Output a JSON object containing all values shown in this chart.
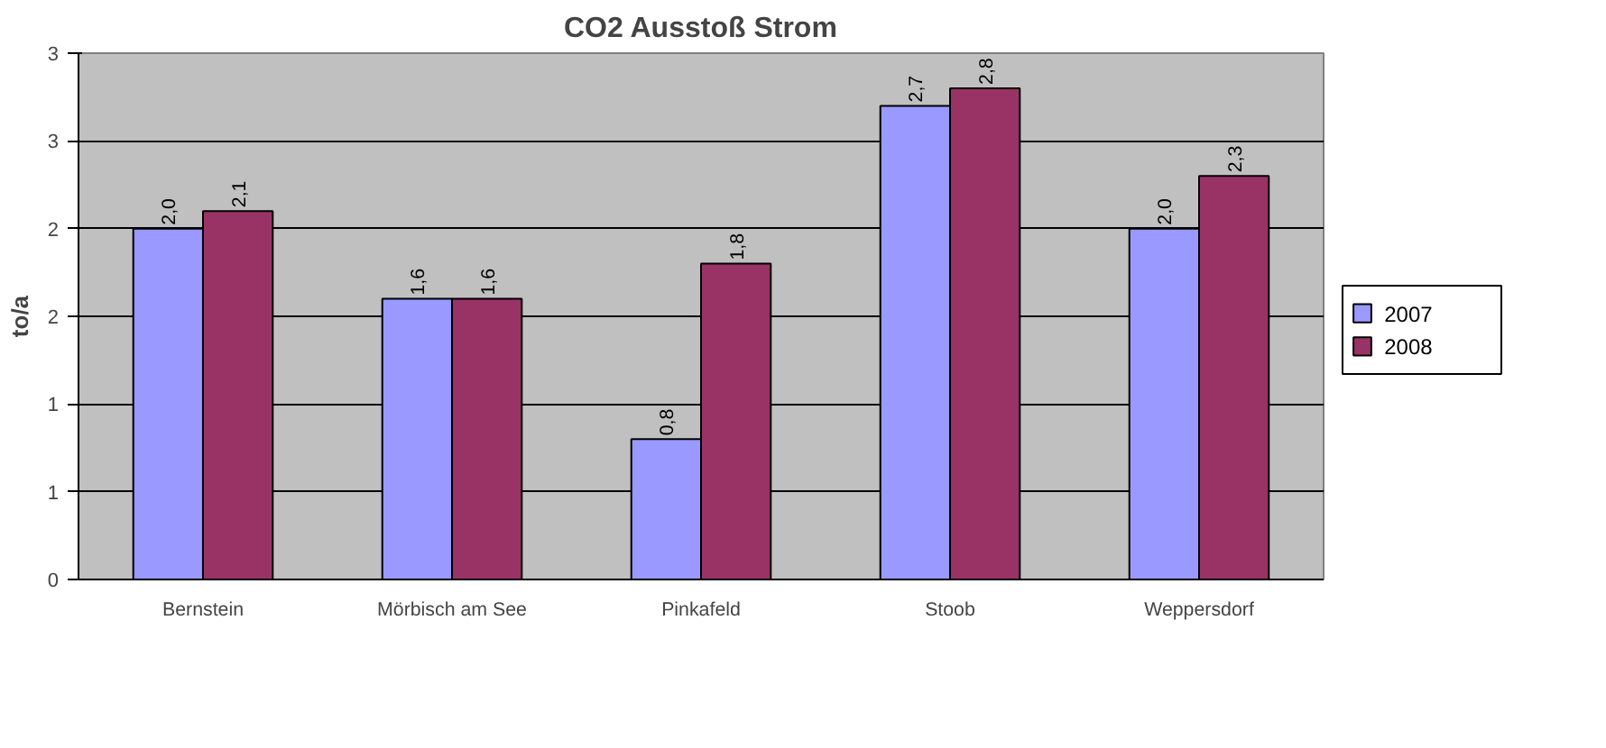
{
  "chart_data": {
    "type": "bar",
    "title": "CO2 Ausstoß Strom",
    "ylabel": "to/a",
    "categories": [
      "Bernstein",
      "Mörbisch am See",
      "Pinkafeld",
      "Stoob",
      "Weppersdorf"
    ],
    "series": [
      {
        "name": "2007",
        "color": "#9999ff",
        "values": [
          2.0,
          1.6,
          0.8,
          2.7,
          2.0
        ],
        "value_labels": [
          "2,0",
          "1,6",
          "0,8",
          "2,7",
          "2,0"
        ]
      },
      {
        "name": "2008",
        "color": "#993366",
        "values": [
          2.1,
          1.6,
          1.8,
          2.8,
          2.3
        ],
        "value_labels": [
          "2,1",
          "1,6",
          "1,8",
          "2,8",
          "2,3"
        ]
      }
    ],
    "ylim": [
      0,
      3
    ],
    "yticks": [
      0,
      {
        "value": 0.5,
        "label": "1"
      },
      1,
      {
        "value": 1.5,
        "label": "2"
      },
      2,
      {
        "value": 2.5,
        "label": "3"
      },
      3
    ],
    "grid": "y",
    "legend": "right"
  }
}
